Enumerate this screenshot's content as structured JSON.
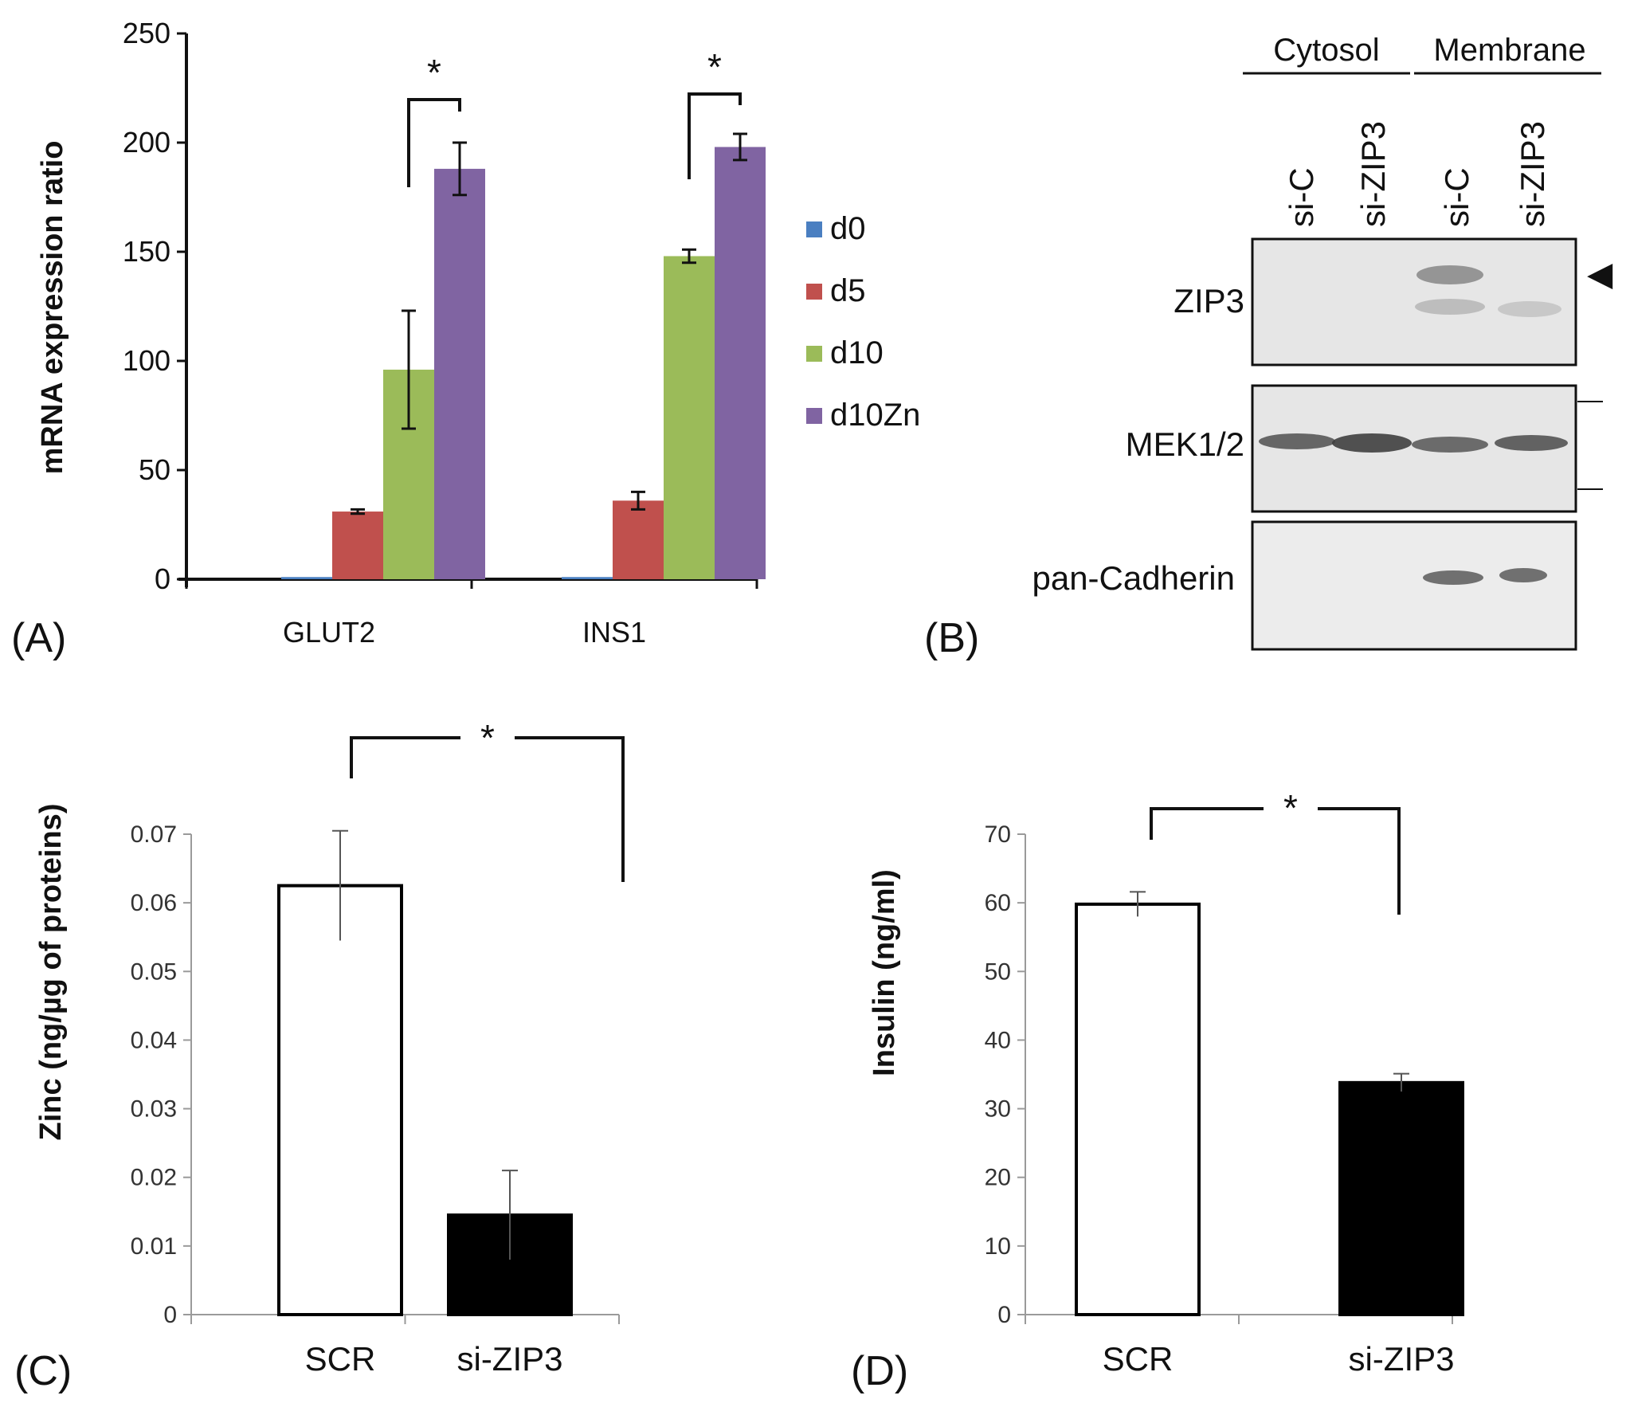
{
  "chart_data": [
    {
      "panel": "(A)",
      "type": "bar",
      "title": "",
      "xlabel": "",
      "ylabel": "mRNA expression ratio",
      "ylim": [
        0,
        250
      ],
      "yticks": [
        "0",
        "50",
        "100",
        "150",
        "200",
        "250"
      ],
      "categories": [
        "GLUT2",
        "INS1"
      ],
      "series": [
        {
          "name": "d0",
          "color": "#4a7fc1",
          "values": [
            1,
            1
          ],
          "errors": [
            0,
            0
          ]
        },
        {
          "name": "d5",
          "color": "#c0504d",
          "values": [
            31,
            36
          ],
          "errors": [
            1,
            4
          ]
        },
        {
          "name": "d10",
          "color": "#9bbb59",
          "values": [
            96,
            148
          ],
          "errors": [
            27,
            3
          ]
        },
        {
          "name": "d10Zn",
          "color": "#8064a2",
          "values": [
            188,
            198
          ],
          "errors": [
            12,
            6
          ]
        }
      ],
      "legend": "right",
      "significance": [
        "*",
        "*"
      ]
    },
    {
      "panel": "(C)",
      "type": "bar",
      "ylabel": "Zinc (ng/µg of proteins)",
      "ylim": [
        0,
        0.07
      ],
      "yticks": [
        "0",
        "0.01",
        "0.02",
        "0.03",
        "0.04",
        "0.05",
        "0.06",
        "0.07"
      ],
      "categories": [
        "SCR",
        "si-ZIP3"
      ],
      "values": [
        0.0625,
        0.0145
      ],
      "errors": [
        0.008,
        0.0065
      ],
      "fills": [
        "#ffffff",
        "#000000"
      ],
      "significance": "*"
    },
    {
      "panel": "(D)",
      "type": "bar",
      "ylabel": "Insulin (ng/ml)",
      "ylim": [
        0,
        70
      ],
      "yticks": [
        "0",
        "10",
        "20",
        "30",
        "40",
        "50",
        "60",
        "70"
      ],
      "categories": [
        "SCR",
        "si-ZIP3"
      ],
      "values": [
        59.8,
        33.8
      ],
      "errors": [
        1.8,
        1.3
      ],
      "fills": [
        "#ffffff",
        "#000000"
      ],
      "significance": "*"
    }
  ],
  "blot": {
    "panel": "(B)",
    "fractions": [
      "Cytosol",
      "Membrane"
    ],
    "lanes": [
      "si-C",
      "si-ZIP3",
      "si-C",
      "si-ZIP3"
    ],
    "rows": [
      "ZIP3",
      "MEK1/2",
      "pan-Cadherin"
    ],
    "arrow": "◀"
  }
}
